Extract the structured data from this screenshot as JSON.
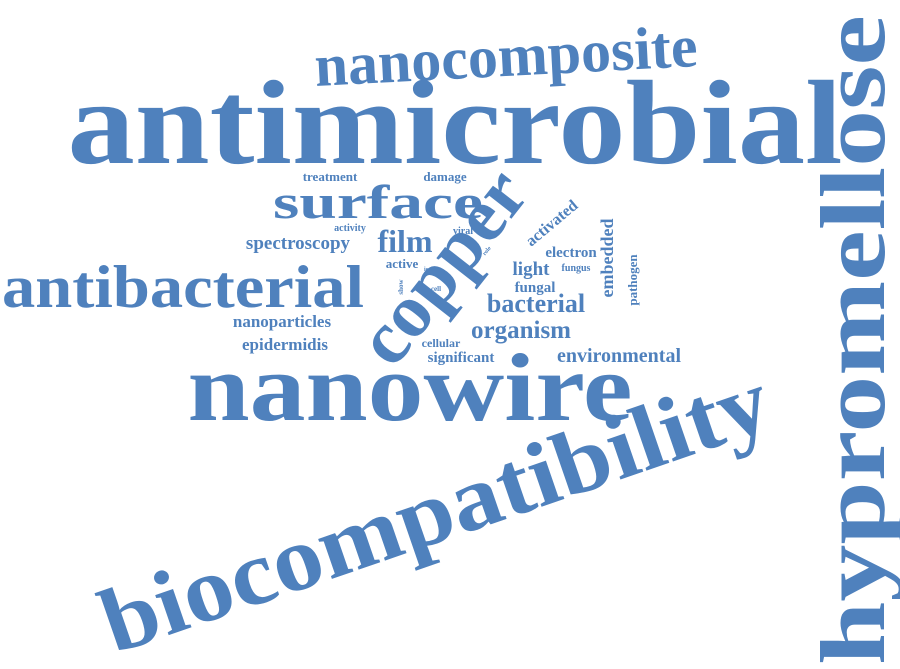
{
  "color": "#4f81bd",
  "words": {
    "antimicrobial": "antimicrobial",
    "nanocomposite": "nanocomposite",
    "hypromellose": "hypromellose",
    "biocompatibility": "biocompatibility",
    "nanowire": "nanowire",
    "antibacterial": "antibacterial",
    "copper": "copper",
    "surface": "surface",
    "film": "film",
    "spectroscopy": "spectroscopy",
    "treatment": "treatment",
    "damage": "damage",
    "activity": "activity",
    "viral": "viral",
    "activated": "activated",
    "embedded": "embedded",
    "electron": "electron",
    "fungus": "fungus",
    "pathogen": "pathogen",
    "light": "light",
    "fungal": "fungal",
    "active": "active",
    "show": "show",
    "cell": "cell",
    "role": "role",
    "ion": "ion",
    "bacterial": "bacterial",
    "organism": "organism",
    "nanoparticles": "nanoparticles",
    "epidermidis": "epidermidis",
    "cellular": "cellular",
    "significant": "significant",
    "environmental": "environmental"
  }
}
